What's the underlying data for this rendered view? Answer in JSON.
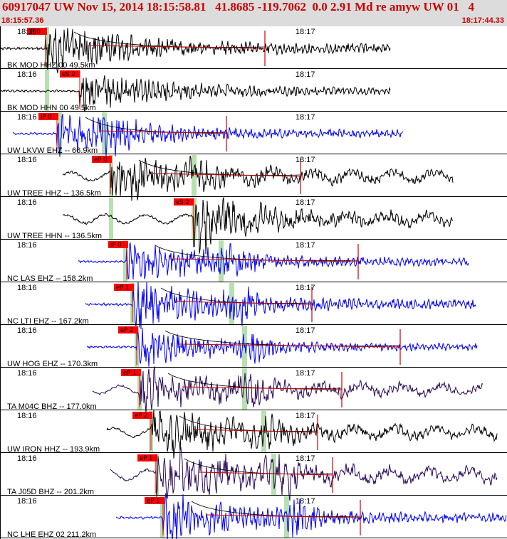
{
  "header": {
    "title": "60917047 UW Nov 15, 2014 18:15:58.81   41.8685 -119.7062  0.0 2.91 Md re amyw UW 01   4",
    "start_time": "18:15:57.36",
    "end_time": "18:17:44.33"
  },
  "chart_data": {
    "type": "seismogram_record_section",
    "event": {
      "id": "60917047",
      "network": "UW",
      "origin_time": "Nov 15, 2014 18:15:58.81",
      "latitude": 41.8685,
      "longitude": -119.7062,
      "depth": 0.0,
      "magnitude": 2.91,
      "magnitude_type": "Md"
    },
    "time_window": [
      "18:15:57.36",
      "18:17:44.33"
    ],
    "minute_marks": [
      "18:16",
      "18:17"
    ],
    "colors": {
      "black_trace": "#000000",
      "blue_trace": "#0000ff",
      "purple_trace": "#2a0a5a",
      "pick_box": "#ff0000",
      "arrival_band": "#b8e0b0",
      "separator": "#000000",
      "amp_curve": "#cc0000"
    },
    "traces": [
      {
        "label": "BK MOD HHZ 00 49.5km",
        "distance_km": 49.5,
        "color": "black",
        "pick": "iP 0",
        "s_pick": ""
      },
      {
        "label": "BK MOD HHN 00 49.5km",
        "distance_km": 49.5,
        "color": "black",
        "pick": "",
        "s_pick": "eS 2"
      },
      {
        "label": "UW LKVW EHZ -- 66.9km",
        "distance_km": 66.9,
        "color": "blue",
        "pick": "iP 0",
        "s_pick": ""
      },
      {
        "label": "UW TREE HHZ -- 136.5km",
        "distance_km": 136.5,
        "color": "black",
        "pick": "eP 0",
        "s_pick": ""
      },
      {
        "label": "UW TREE HHN -- 136.5km",
        "distance_km": 136.5,
        "color": "black",
        "pick": "",
        "s_pick": "eS 2"
      },
      {
        "label": "NC LAS EHZ -- 158.2km",
        "distance_km": 158.2,
        "color": "blue",
        "pick": "iP 0",
        "s_pick": ""
      },
      {
        "label": "NC LTI EHZ -- 167.2km",
        "distance_km": 167.2,
        "color": "blue",
        "pick": "eP 1",
        "s_pick": ""
      },
      {
        "label": "UW HOG EHZ -- 170.3km",
        "distance_km": 170.3,
        "color": "blue",
        "pick": "eP 2",
        "s_pick": ""
      },
      {
        "label": "TA M04C BHZ -- 177.0km",
        "distance_km": 177.0,
        "color": "purple",
        "pick": "eP 1",
        "s_pick": ""
      },
      {
        "label": "UW IRON HHZ -- 193.9km",
        "distance_km": 193.9,
        "color": "black",
        "pick": "eP 2",
        "s_pick": ""
      },
      {
        "label": "TA J05D BHZ -- 201.2km",
        "distance_km": 201.2,
        "color": "purple",
        "pick": "eP 1",
        "s_pick": ""
      },
      {
        "label": "NC LHE EHZ 02 211.2km",
        "distance_km": 211.2,
        "color": "blue",
        "pick": "eP 1",
        "s_pick": ""
      }
    ]
  }
}
